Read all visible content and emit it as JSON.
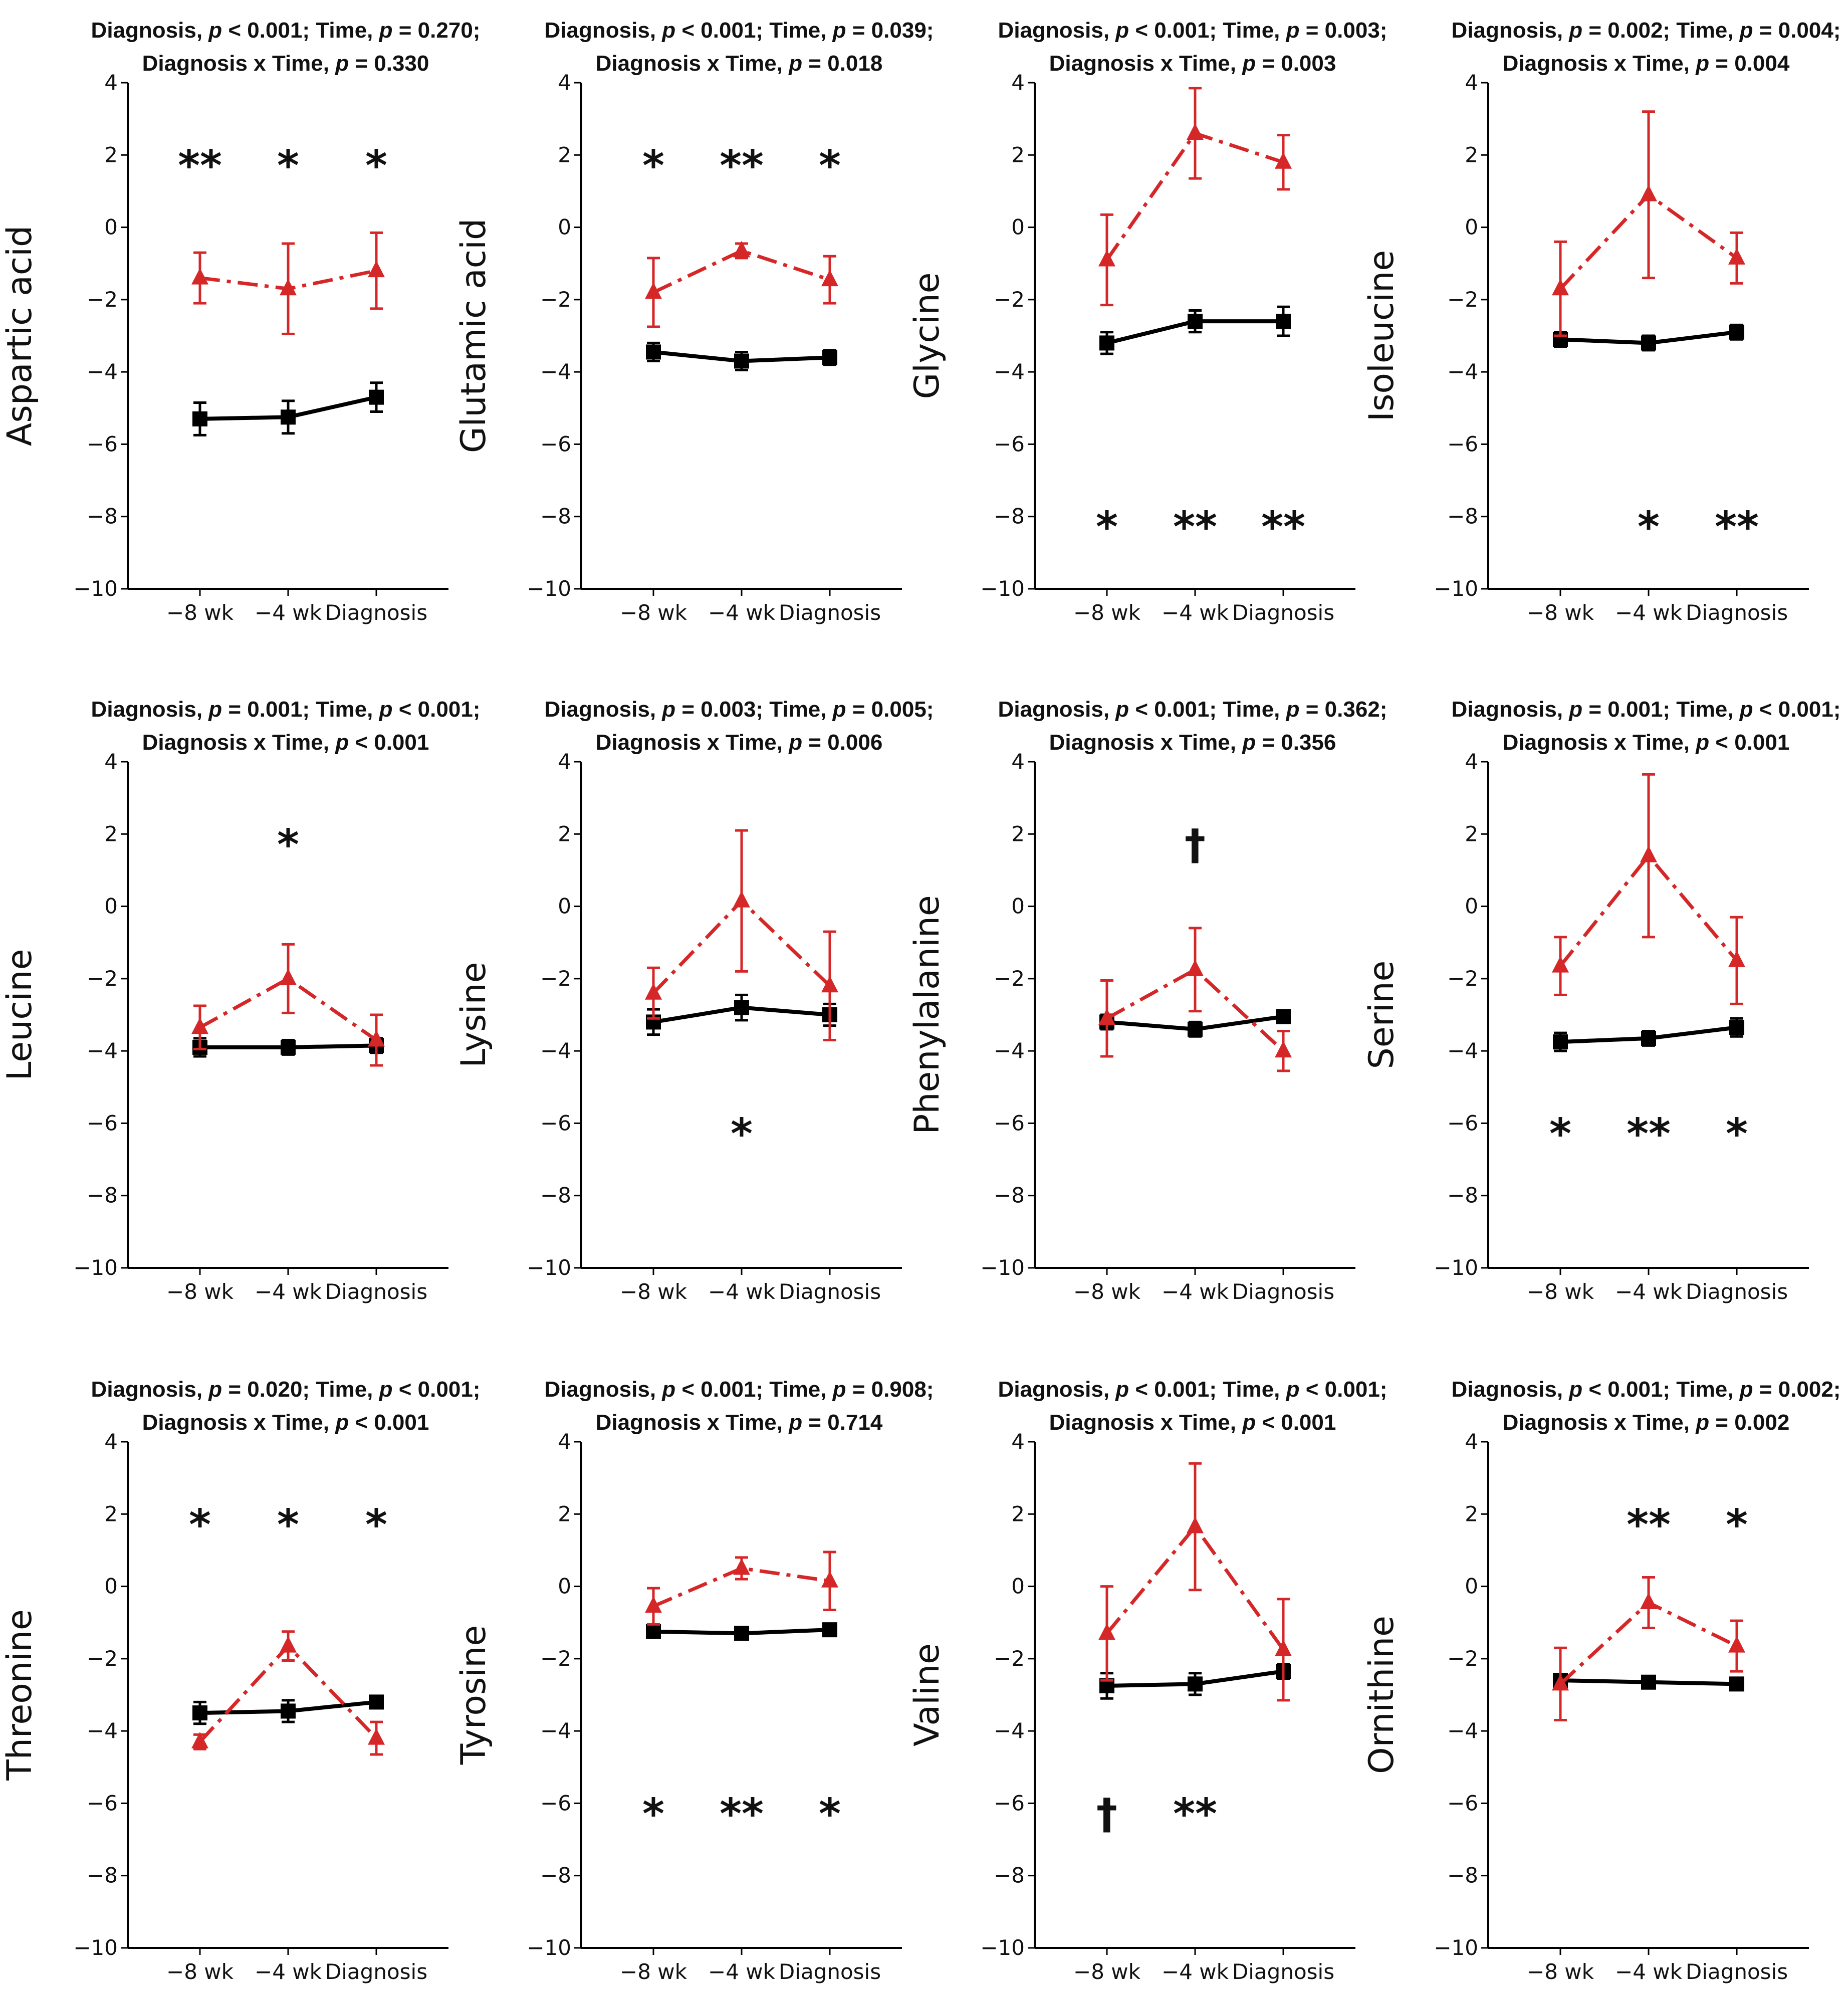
{
  "chart_data": [
    {
      "type": "line",
      "ylabel": "Aspartic acid",
      "title_segments": [
        [
          "Diagnosis, "
        ],
        [
          "p",
          "i"
        ],
        [
          " < 0.001; Time, "
        ],
        [
          "p",
          "i"
        ],
        [
          " = 0.270;"
        ]
      ],
      "title_line2_segments": [
        [
          "Diagnosis x Time, "
        ],
        [
          "p",
          "i"
        ],
        [
          " = 0.330"
        ]
      ],
      "categories": [
        "−8 wk",
        "−4 wk",
        "Diagnosis"
      ],
      "ylim": [
        -10,
        4
      ],
      "yticks": [
        "−10",
        "−8",
        "−6",
        "−4",
        "−2",
        "0",
        "2",
        "4"
      ],
      "series": [
        {
          "name": "black",
          "color": "#000000",
          "marker": "square",
          "dash": "solid",
          "values": [
            -5.3,
            -5.25,
            -4.7
          ],
          "err": [
            0.45,
            0.45,
            0.4
          ]
        },
        {
          "name": "red",
          "color": "#d62728",
          "marker": "triangle",
          "dash": "dashdot",
          "values": [
            -1.4,
            -1.7,
            -1.2
          ],
          "err": [
            0.7,
            1.25,
            1.05
          ]
        }
      ],
      "annotations": [
        {
          "x": 0,
          "y": 2,
          "text": "**"
        },
        {
          "x": 1,
          "y": 2,
          "text": "*"
        },
        {
          "x": 2,
          "y": 2,
          "text": "*"
        }
      ]
    },
    {
      "type": "line",
      "ylabel": "Glutamic acid",
      "title_segments": [
        [
          "Diagnosis, "
        ],
        [
          "p",
          "i"
        ],
        [
          " < 0.001; Time, "
        ],
        [
          "p",
          "i"
        ],
        [
          " = 0.039;"
        ]
      ],
      "title_line2_segments": [
        [
          "Diagnosis x Time, "
        ],
        [
          "p",
          "i"
        ],
        [
          " = 0.018"
        ]
      ],
      "categories": [
        "−8 wk",
        "−4 wk",
        "Diagnosis"
      ],
      "ylim": [
        -10,
        4
      ],
      "yticks": [
        "−10",
        "−8",
        "−6",
        "−4",
        "−2",
        "0",
        "2",
        "4"
      ],
      "series": [
        {
          "name": "black",
          "color": "#000000",
          "marker": "square",
          "dash": "solid",
          "values": [
            -3.45,
            -3.7,
            -3.6
          ],
          "err": [
            0.25,
            0.25,
            0.2
          ]
        },
        {
          "name": "red",
          "color": "#d62728",
          "marker": "triangle",
          "dash": "dashdot",
          "values": [
            -1.8,
            -0.65,
            -1.45
          ],
          "err": [
            0.95,
            0.2,
            0.65
          ]
        }
      ],
      "annotations": [
        {
          "x": 0,
          "y": 2,
          "text": "*"
        },
        {
          "x": 1,
          "y": 2,
          "text": "**"
        },
        {
          "x": 2,
          "y": 2,
          "text": "*"
        }
      ]
    },
    {
      "type": "line",
      "ylabel": "Glycine",
      "title_segments": [
        [
          "Diagnosis, "
        ],
        [
          "p",
          "i"
        ],
        [
          " < 0.001; Time, "
        ],
        [
          "p",
          "i"
        ],
        [
          " = 0.003;"
        ]
      ],
      "title_line2_segments": [
        [
          "Diagnosis x Time, "
        ],
        [
          "p",
          "i"
        ],
        [
          " = 0.003"
        ]
      ],
      "categories": [
        "−8 wk",
        "−4 wk",
        "Diagnosis"
      ],
      "ylim": [
        -10,
        4
      ],
      "yticks": [
        "−10",
        "−8",
        "−6",
        "−4",
        "−2",
        "0",
        "2",
        "4"
      ],
      "series": [
        {
          "name": "black",
          "color": "#000000",
          "marker": "square",
          "dash": "solid",
          "values": [
            -3.2,
            -2.6,
            -2.6
          ],
          "err": [
            0.3,
            0.3,
            0.4
          ]
        },
        {
          "name": "red",
          "color": "#d62728",
          "marker": "triangle",
          "dash": "dashdot",
          "values": [
            -0.9,
            2.6,
            1.8
          ],
          "err": [
            1.25,
            1.25,
            0.75
          ]
        }
      ],
      "annotations": [
        {
          "x": 0,
          "y": -8,
          "text": "*"
        },
        {
          "x": 1,
          "y": -8,
          "text": "**"
        },
        {
          "x": 2,
          "y": -8,
          "text": "**"
        }
      ]
    },
    {
      "type": "line",
      "ylabel": "Isoleucine",
      "title_segments": [
        [
          "Diagnosis, "
        ],
        [
          "p",
          "i"
        ],
        [
          " = 0.002; Time, "
        ],
        [
          "p",
          "i"
        ],
        [
          " = 0.004;"
        ]
      ],
      "title_line2_segments": [
        [
          "Diagnosis x Time, "
        ],
        [
          "p",
          "i"
        ],
        [
          " = 0.004"
        ]
      ],
      "categories": [
        "−8 wk",
        "−4 wk",
        "Diagnosis"
      ],
      "ylim": [
        -10,
        4
      ],
      "yticks": [
        "−10",
        "−8",
        "−6",
        "−4",
        "−2",
        "0",
        "2",
        "4"
      ],
      "series": [
        {
          "name": "black",
          "color": "#000000",
          "marker": "square",
          "dash": "solid",
          "values": [
            -3.1,
            -3.2,
            -2.9
          ],
          "err": [
            0.2,
            0.2,
            0.2
          ]
        },
        {
          "name": "red",
          "color": "#d62728",
          "marker": "triangle",
          "dash": "dashdot",
          "values": [
            -1.7,
            0.9,
            -0.85
          ],
          "err": [
            1.3,
            2.3,
            0.7
          ]
        }
      ],
      "annotations": [
        {
          "x": 1,
          "y": -8,
          "text": "*"
        },
        {
          "x": 2,
          "y": -8,
          "text": "**"
        }
      ]
    },
    {
      "type": "line",
      "ylabel": "Leucine",
      "title_segments": [
        [
          "Diagnosis, "
        ],
        [
          "p",
          "i"
        ],
        [
          " = 0.001; Time, "
        ],
        [
          "p",
          "i"
        ],
        [
          " < 0.001;"
        ]
      ],
      "title_line2_segments": [
        [
          "Diagnosis x Time, "
        ],
        [
          "p",
          "i"
        ],
        [
          " < 0.001"
        ]
      ],
      "categories": [
        "−8 wk",
        "−4 wk",
        "Diagnosis"
      ],
      "ylim": [
        -10,
        4
      ],
      "yticks": [
        "−10",
        "−8",
        "−6",
        "−4",
        "−2",
        "0",
        "2",
        "4"
      ],
      "series": [
        {
          "name": "black",
          "color": "#000000",
          "marker": "square",
          "dash": "solid",
          "values": [
            -3.9,
            -3.9,
            -3.85
          ],
          "err": [
            0.25,
            0.2,
            0.2
          ]
        },
        {
          "name": "red",
          "color": "#d62728",
          "marker": "triangle",
          "dash": "dashdot",
          "values": [
            -3.35,
            -2.0,
            -3.7
          ],
          "err": [
            0.6,
            0.95,
            0.7
          ]
        }
      ],
      "annotations": [
        {
          "x": 1,
          "y": 2,
          "text": "*"
        }
      ]
    },
    {
      "type": "line",
      "ylabel": "Lysine",
      "title_segments": [
        [
          "Diagnosis, "
        ],
        [
          "p",
          "i"
        ],
        [
          " = 0.003; Time, "
        ],
        [
          "p",
          "i"
        ],
        [
          " = 0.005;"
        ]
      ],
      "title_line2_segments": [
        [
          "Diagnosis x Time, "
        ],
        [
          "p",
          "i"
        ],
        [
          " = 0.006"
        ]
      ],
      "categories": [
        "−8 wk",
        "−4 wk",
        "Diagnosis"
      ],
      "ylim": [
        -10,
        4
      ],
      "yticks": [
        "−10",
        "−8",
        "−6",
        "−4",
        "−2",
        "0",
        "2",
        "4"
      ],
      "series": [
        {
          "name": "black",
          "color": "#000000",
          "marker": "square",
          "dash": "solid",
          "values": [
            -3.2,
            -2.8,
            -3.0
          ],
          "err": [
            0.35,
            0.35,
            0.3
          ]
        },
        {
          "name": "red",
          "color": "#d62728",
          "marker": "triangle",
          "dash": "dashdot",
          "values": [
            -2.4,
            0.15,
            -2.2
          ],
          "err": [
            0.7,
            1.95,
            1.5
          ]
        }
      ],
      "annotations": [
        {
          "x": 1,
          "y": -6,
          "text": "*"
        }
      ]
    },
    {
      "type": "line",
      "ylabel": "Phenylalanine",
      "title_segments": [
        [
          "Diagnosis, "
        ],
        [
          "p",
          "i"
        ],
        [
          " < 0.001; Time, "
        ],
        [
          "p",
          "i"
        ],
        [
          " = 0.362;"
        ]
      ],
      "title_line2_segments": [
        [
          "Diagnosis x Time, "
        ],
        [
          "p",
          "i"
        ],
        [
          " = 0.356"
        ]
      ],
      "categories": [
        "−8 wk",
        "−4 wk",
        "Diagnosis"
      ],
      "ylim": [
        -10,
        4
      ],
      "yticks": [
        "−10",
        "−8",
        "−6",
        "−4",
        "−2",
        "0",
        "2",
        "4"
      ],
      "series": [
        {
          "name": "black",
          "color": "#000000",
          "marker": "square",
          "dash": "solid",
          "values": [
            -3.2,
            -3.4,
            -3.05
          ],
          "err": [
            0.2,
            0.2,
            0.15
          ]
        },
        {
          "name": "red",
          "color": "#d62728",
          "marker": "triangle",
          "dash": "dashdot",
          "values": [
            -3.1,
            -1.75,
            -4.0
          ],
          "err": [
            1.05,
            1.15,
            0.55
          ]
        }
      ],
      "annotations": [
        {
          "x": 1,
          "y": 2,
          "text": "†"
        }
      ]
    },
    {
      "type": "line",
      "ylabel": "Serine",
      "title_segments": [
        [
          "Diagnosis, "
        ],
        [
          "p",
          "i"
        ],
        [
          " = 0.001; Time, "
        ],
        [
          "p",
          "i"
        ],
        [
          " < 0.001;"
        ]
      ],
      "title_line2_segments": [
        [
          "Diagnosis x Time, "
        ],
        [
          "p",
          "i"
        ],
        [
          " < 0.001"
        ]
      ],
      "categories": [
        "−8 wk",
        "−4 wk",
        "Diagnosis"
      ],
      "ylim": [
        -10,
        4
      ],
      "yticks": [
        "−10",
        "−8",
        "−6",
        "−4",
        "−2",
        "0",
        "2",
        "4"
      ],
      "series": [
        {
          "name": "black",
          "color": "#000000",
          "marker": "square",
          "dash": "solid",
          "values": [
            -3.75,
            -3.65,
            -3.35
          ],
          "err": [
            0.25,
            0.2,
            0.25
          ]
        },
        {
          "name": "red",
          "color": "#d62728",
          "marker": "triangle",
          "dash": "dashdot",
          "values": [
            -1.65,
            1.4,
            -1.5
          ],
          "err": [
            0.8,
            2.25,
            1.2
          ]
        }
      ],
      "annotations": [
        {
          "x": 0,
          "y": -6,
          "text": "*"
        },
        {
          "x": 1,
          "y": -6,
          "text": "**"
        },
        {
          "x": 2,
          "y": -6,
          "text": "*"
        }
      ]
    },
    {
      "type": "line",
      "ylabel": "Threonine",
      "title_segments": [
        [
          "Diagnosis, "
        ],
        [
          "p",
          "i"
        ],
        [
          " = 0.020; Time, "
        ],
        [
          "p",
          "i"
        ],
        [
          " < 0.001;"
        ]
      ],
      "title_line2_segments": [
        [
          "Diagnosis x Time, "
        ],
        [
          "p",
          "i"
        ],
        [
          " < 0.001"
        ]
      ],
      "categories": [
        "−8 wk",
        "−4 wk",
        "Diagnosis"
      ],
      "ylim": [
        -10,
        4
      ],
      "yticks": [
        "−10",
        "−8",
        "−6",
        "−4",
        "−2",
        "0",
        "2",
        "4"
      ],
      "series": [
        {
          "name": "black",
          "color": "#000000",
          "marker": "square",
          "dash": "solid",
          "values": [
            -3.5,
            -3.45,
            -3.2
          ],
          "err": [
            0.3,
            0.3,
            0.15
          ]
        },
        {
          "name": "red",
          "color": "#d62728",
          "marker": "triangle",
          "dash": "dashdot",
          "values": [
            -4.3,
            -1.65,
            -4.2
          ],
          "err": [
            0.2,
            0.4,
            0.45
          ]
        }
      ],
      "annotations": [
        {
          "x": 0,
          "y": 2,
          "text": "*"
        },
        {
          "x": 1,
          "y": 2,
          "text": "*"
        },
        {
          "x": 2,
          "y": 2,
          "text": "*"
        }
      ]
    },
    {
      "type": "line",
      "ylabel": "Tyrosine",
      "title_segments": [
        [
          "Diagnosis, "
        ],
        [
          "p",
          "i"
        ],
        [
          " < 0.001; Time, "
        ],
        [
          "p",
          "i"
        ],
        [
          " = 0.908;"
        ]
      ],
      "title_line2_segments": [
        [
          "Diagnosis x Time, "
        ],
        [
          "p",
          "i"
        ],
        [
          " = 0.714"
        ]
      ],
      "categories": [
        "−8 wk",
        "−4 wk",
        "Diagnosis"
      ],
      "ylim": [
        -10,
        4
      ],
      "yticks": [
        "−10",
        "−8",
        "−6",
        "−4",
        "−2",
        "0",
        "2",
        "4"
      ],
      "series": [
        {
          "name": "black",
          "color": "#000000",
          "marker": "square",
          "dash": "solid",
          "values": [
            -1.25,
            -1.3,
            -1.2
          ],
          "err": [
            0.15,
            0.1,
            0.1
          ]
        },
        {
          "name": "red",
          "color": "#d62728",
          "marker": "triangle",
          "dash": "dashdot",
          "values": [
            -0.55,
            0.5,
            0.15
          ],
          "err": [
            0.5,
            0.3,
            0.8
          ]
        }
      ],
      "annotations": [
        {
          "x": 0,
          "y": -6,
          "text": "*"
        },
        {
          "x": 1,
          "y": -6,
          "text": "**"
        },
        {
          "x": 2,
          "y": -6,
          "text": "*"
        }
      ]
    },
    {
      "type": "line",
      "ylabel": "Valine",
      "title_segments": [
        [
          "Diagnosis, "
        ],
        [
          "p",
          "i"
        ],
        [
          " < 0.001; Time, "
        ],
        [
          "p",
          "i"
        ],
        [
          " < 0.001;"
        ]
      ],
      "title_line2_segments": [
        [
          "Diagnosis x Time, "
        ],
        [
          "p",
          "i"
        ],
        [
          " < 0.001"
        ]
      ],
      "categories": [
        "−8 wk",
        "−4 wk",
        "Diagnosis"
      ],
      "ylim": [
        -10,
        4
      ],
      "yticks": [
        "−10",
        "−8",
        "−6",
        "−4",
        "−2",
        "0",
        "2",
        "4"
      ],
      "series": [
        {
          "name": "black",
          "color": "#000000",
          "marker": "square",
          "dash": "solid",
          "values": [
            -2.75,
            -2.7,
            -2.35
          ],
          "err": [
            0.35,
            0.3,
            0.2
          ]
        },
        {
          "name": "red",
          "color": "#d62728",
          "marker": "triangle",
          "dash": "dashdot",
          "values": [
            -1.3,
            1.65,
            -1.75
          ],
          "err": [
            1.3,
            1.75,
            1.4
          ]
        }
      ],
      "annotations": [
        {
          "x": 0,
          "y": -6,
          "text": "†"
        },
        {
          "x": 1,
          "y": -6,
          "text": "**"
        }
      ]
    },
    {
      "type": "line",
      "ylabel": "Ornithine",
      "title_segments": [
        [
          "Diagnosis, "
        ],
        [
          "p",
          "i"
        ],
        [
          " < 0.001; Time, "
        ],
        [
          "p",
          "i"
        ],
        [
          " = 0.002;"
        ]
      ],
      "title_line2_segments": [
        [
          "Diagnosis x Time, "
        ],
        [
          "p",
          "i"
        ],
        [
          " = 0.002"
        ]
      ],
      "categories": [
        "−8 wk",
        "−4 wk",
        "Diagnosis"
      ],
      "ylim": [
        -10,
        4
      ],
      "yticks": [
        "−10",
        "−8",
        "−6",
        "−4",
        "−2",
        "0",
        "2",
        "4"
      ],
      "series": [
        {
          "name": "black",
          "color": "#000000",
          "marker": "square",
          "dash": "solid",
          "values": [
            -2.6,
            -2.65,
            -2.7
          ],
          "err": [
            0.15,
            0.15,
            0.15
          ]
        },
        {
          "name": "red",
          "color": "#d62728",
          "marker": "triangle",
          "dash": "dashdot",
          "values": [
            -2.7,
            -0.45,
            -1.65
          ],
          "err": [
            1.0,
            0.7,
            0.7
          ]
        }
      ],
      "annotations": [
        {
          "x": 1,
          "y": 2,
          "text": "**"
        },
        {
          "x": 2,
          "y": 2,
          "text": "*"
        }
      ]
    }
  ]
}
